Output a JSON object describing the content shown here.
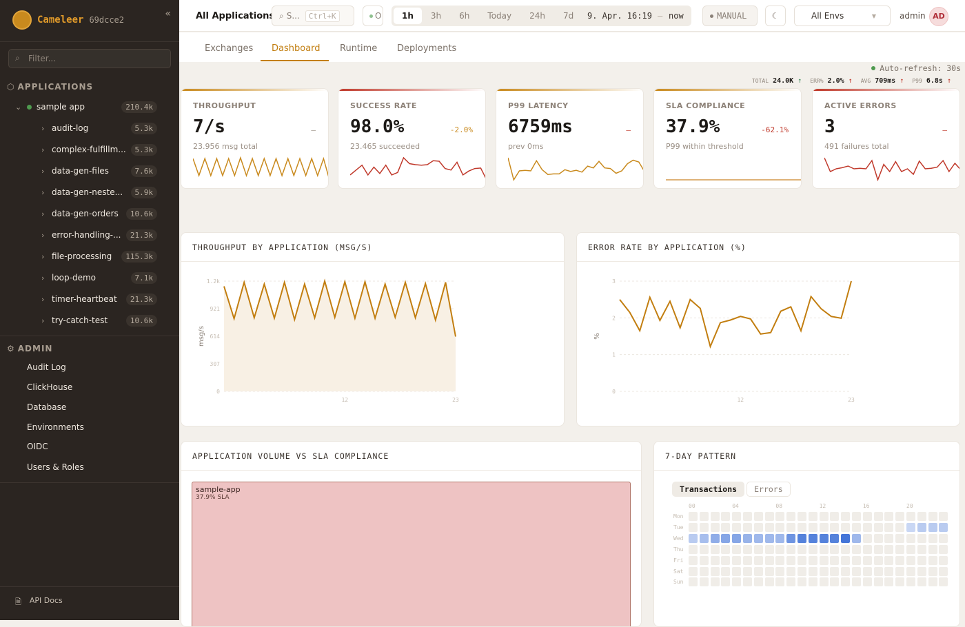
{
  "sidebar": {
    "brand": "Cameleer",
    "version": "69dcce2",
    "filter_placeholder": "Filter...",
    "applications_label": "APPLICATIONS",
    "root_app": {
      "name": "sample app",
      "count": "210.4k",
      "status_color": "#4f9a4f"
    },
    "apps": [
      {
        "name": "audit-log",
        "count": "5.3k"
      },
      {
        "name": "complex-fulfillm...",
        "count": "5.3k"
      },
      {
        "name": "data-gen-files",
        "count": "7.6k"
      },
      {
        "name": "data-gen-neste...",
        "count": "5.9k"
      },
      {
        "name": "data-gen-orders",
        "count": "10.6k"
      },
      {
        "name": "error-handling-...",
        "count": "21.3k"
      },
      {
        "name": "file-processing",
        "count": "115.3k"
      },
      {
        "name": "loop-demo",
        "count": "7.1k"
      },
      {
        "name": "timer-heartbeat",
        "count": "21.3k"
      },
      {
        "name": "try-catch-test",
        "count": "10.6k"
      }
    ],
    "admin_label": "ADMIN",
    "admin_items": [
      "Audit Log",
      "ClickHouse",
      "Database",
      "Environments",
      "OIDC",
      "Users & Roles"
    ],
    "api_docs": "API Docs"
  },
  "topbar": {
    "title": "All Applications",
    "search_placeholder": "S...",
    "search_shortcut": "Ctrl+K",
    "status_label": "O",
    "time_ranges": [
      "1h",
      "3h",
      "6h",
      "Today",
      "24h",
      "7d"
    ],
    "selected_range": "1h",
    "range_from": "9. Apr. 16:19",
    "range_sep": "–",
    "range_to": "now",
    "manual_label": "MANUAL",
    "env_select": "All Envs",
    "user": "admin",
    "avatar": "AD"
  },
  "tabs": [
    "Exchanges",
    "Dashboard",
    "Runtime",
    "Deployments"
  ],
  "active_tab": "Dashboard",
  "summary": [
    {
      "label": "TOTAL",
      "value": "24.0K",
      "arrow": "↑",
      "color": "#3d8a5a"
    },
    {
      "label": "ERR%",
      "value": "2.0%",
      "arrow": "↑",
      "color": "#c0392b"
    },
    {
      "label": "AVG",
      "value": "709ms",
      "arrow": "↑",
      "color": "#c0392b"
    },
    {
      "label": "P99",
      "value": "6.8s",
      "arrow": "↑",
      "color": "#c0392b"
    }
  ],
  "auto_refresh": "Auto-refresh: 30s",
  "kpi_cards": [
    {
      "title": "THROUGHPUT",
      "value": "7/s",
      "delta": "–",
      "delta_color": "#9a8f85",
      "sub": "23.956 msg total",
      "accent": "#c98a1e",
      "spark_color": "#c98a1e",
      "spark": [
        5,
        1,
        5,
        1,
        5,
        1,
        5,
        1,
        5.2,
        1,
        5,
        1,
        5,
        1,
        5,
        1,
        5,
        1,
        5,
        1,
        5,
        1,
        5,
        0
      ]
    },
    {
      "title": "SUCCESS RATE",
      "value": "98.0%",
      "delta": "-2.0%",
      "delta_color": "#c98a1e",
      "sub": "23.465 succeeded",
      "accent": "#c0392b",
      "spark_color": "#c0392b",
      "spark": [
        1,
        2,
        3,
        1,
        2.6,
        1.3,
        3,
        1,
        1.5,
        4.5,
        3.3,
        3.1,
        3,
        3.1,
        3.9,
        3.8,
        2.3,
        2,
        3.6,
        1,
        1.8,
        2.3,
        2.4,
        0
      ]
    },
    {
      "title": "P99 LATENCY",
      "value": "6759ms",
      "delta": "–",
      "delta_color": "#c0392b",
      "sub": "prev 0ms",
      "accent": "#c98a1e",
      "spark_color": "#c98a1e",
      "spark": [
        4,
        0.3,
        1.8,
        1.9,
        1.8,
        3.5,
        2,
        1.2,
        1.3,
        1.3,
        2,
        1.7,
        1.9,
        1.6,
        2.6,
        2.3,
        3.4,
        2.3,
        2.2,
        1.4,
        1.8,
        3,
        3.6,
        3.3,
        1.7
      ]
    },
    {
      "title": "SLA COMPLIANCE",
      "value": "37.9%",
      "delta": "-62.1%",
      "delta_color": "#c0392b",
      "sub": "P99 within threshold",
      "accent": "#c98a1e",
      "spark_color": "#d4984a",
      "spark": [
        0,
        0
      ]
    },
    {
      "title": "ACTIVE ERRORS",
      "value": "3",
      "delta": "–",
      "delta_color": "#c0392b",
      "sub": "491 failures total",
      "accent": "#c0392b",
      "spark_color": "#c0392b",
      "spark": [
        4,
        1.5,
        2,
        2.2,
        2.5,
        2,
        2.1,
        2,
        3.5,
        0,
        2.8,
        1.5,
        3.3,
        1.5,
        2,
        1,
        3.4,
        2,
        2.1,
        2.3,
        3.5,
        1.5,
        3,
        1.8
      ]
    }
  ],
  "chart_data": [
    {
      "type": "area",
      "title": "THROUGHPUT BY APPLICATION (MSG/S)",
      "ylabel": "msg/s",
      "x": [
        0,
        1,
        2,
        3,
        4,
        5,
        6,
        7,
        8,
        9,
        10,
        11,
        12,
        13,
        14,
        15,
        16,
        17,
        18,
        19,
        20,
        21,
        22,
        23
      ],
      "x_tick_labels": [
        "12",
        "23"
      ],
      "x_ticks": [
        12,
        23
      ],
      "y_tick_labels": [
        "0",
        "307",
        "614",
        "921",
        "1.2k"
      ],
      "y_ticks": [
        0,
        307,
        614,
        921,
        1228
      ],
      "ylim": [
        0,
        1228
      ],
      "grid": true,
      "color": "#c27e10",
      "values": [
        1170,
        810,
        1215,
        820,
        1195,
        815,
        1215,
        800,
        1195,
        820,
        1228,
        825,
        1220,
        815,
        1220,
        815,
        1195,
        825,
        1215,
        820,
        1200,
        795,
        1215,
        610
      ]
    },
    {
      "type": "line",
      "title": "ERROR RATE BY APPLICATION (%)",
      "ylabel": "%",
      "x": [
        0,
        1,
        2,
        3,
        4,
        5,
        6,
        7,
        8,
        9,
        10,
        11,
        12,
        13,
        14,
        15,
        16,
        17,
        18,
        19,
        20,
        21,
        22,
        23
      ],
      "x_tick_labels": [
        "12",
        "23"
      ],
      "x_ticks": [
        12,
        23
      ],
      "y_tick_labels": [
        "0",
        "1",
        "2",
        "3"
      ],
      "y_ticks": [
        0,
        1,
        2,
        3
      ],
      "ylim": [
        0,
        3
      ],
      "grid": true,
      "color": "#c27e10",
      "values": [
        2.5,
        2.15,
        1.65,
        2.56,
        1.93,
        2.45,
        1.73,
        2.5,
        2.26,
        1.22,
        1.87,
        1.94,
        2.04,
        1.97,
        1.56,
        1.6,
        2.18,
        2.3,
        1.65,
        2.58,
        2.25,
        2.04,
        1.99,
        3.0
      ]
    },
    {
      "type": "treemap",
      "title": "APPLICATION VOLUME VS SLA COMPLIANCE",
      "items": [
        {
          "name": "sample-app",
          "label": "37.9% SLA",
          "sla": 37.9,
          "color": "#eec3c3"
        }
      ]
    },
    {
      "type": "heatmap",
      "title": "7-DAY PATTERN",
      "toggle": [
        "Transactions",
        "Errors"
      ],
      "active_toggle": "Transactions",
      "rows": [
        "Mon",
        "Tue",
        "Wed",
        "Thu",
        "Fri",
        "Sat",
        "Sun"
      ],
      "col_tick_labels": [
        "00",
        "04",
        "08",
        "12",
        "16",
        "20"
      ],
      "color": "#3c6fd6",
      "intensity": {
        "Tue": {
          "20": 0.15,
          "21": 0.25,
          "22": 0.25,
          "23": 0.25
        },
        "Wed": {
          "0": 0.25,
          "1": 0.35,
          "2": 0.5,
          "3": 0.55,
          "4": 0.55,
          "5": 0.45,
          "6": 0.4,
          "7": 0.4,
          "8": 0.4,
          "9": 0.7,
          "10": 0.85,
          "11": 0.85,
          "12": 0.85,
          "13": 0.85,
          "14": 0.95,
          "15": 0.4
        }
      }
    }
  ]
}
